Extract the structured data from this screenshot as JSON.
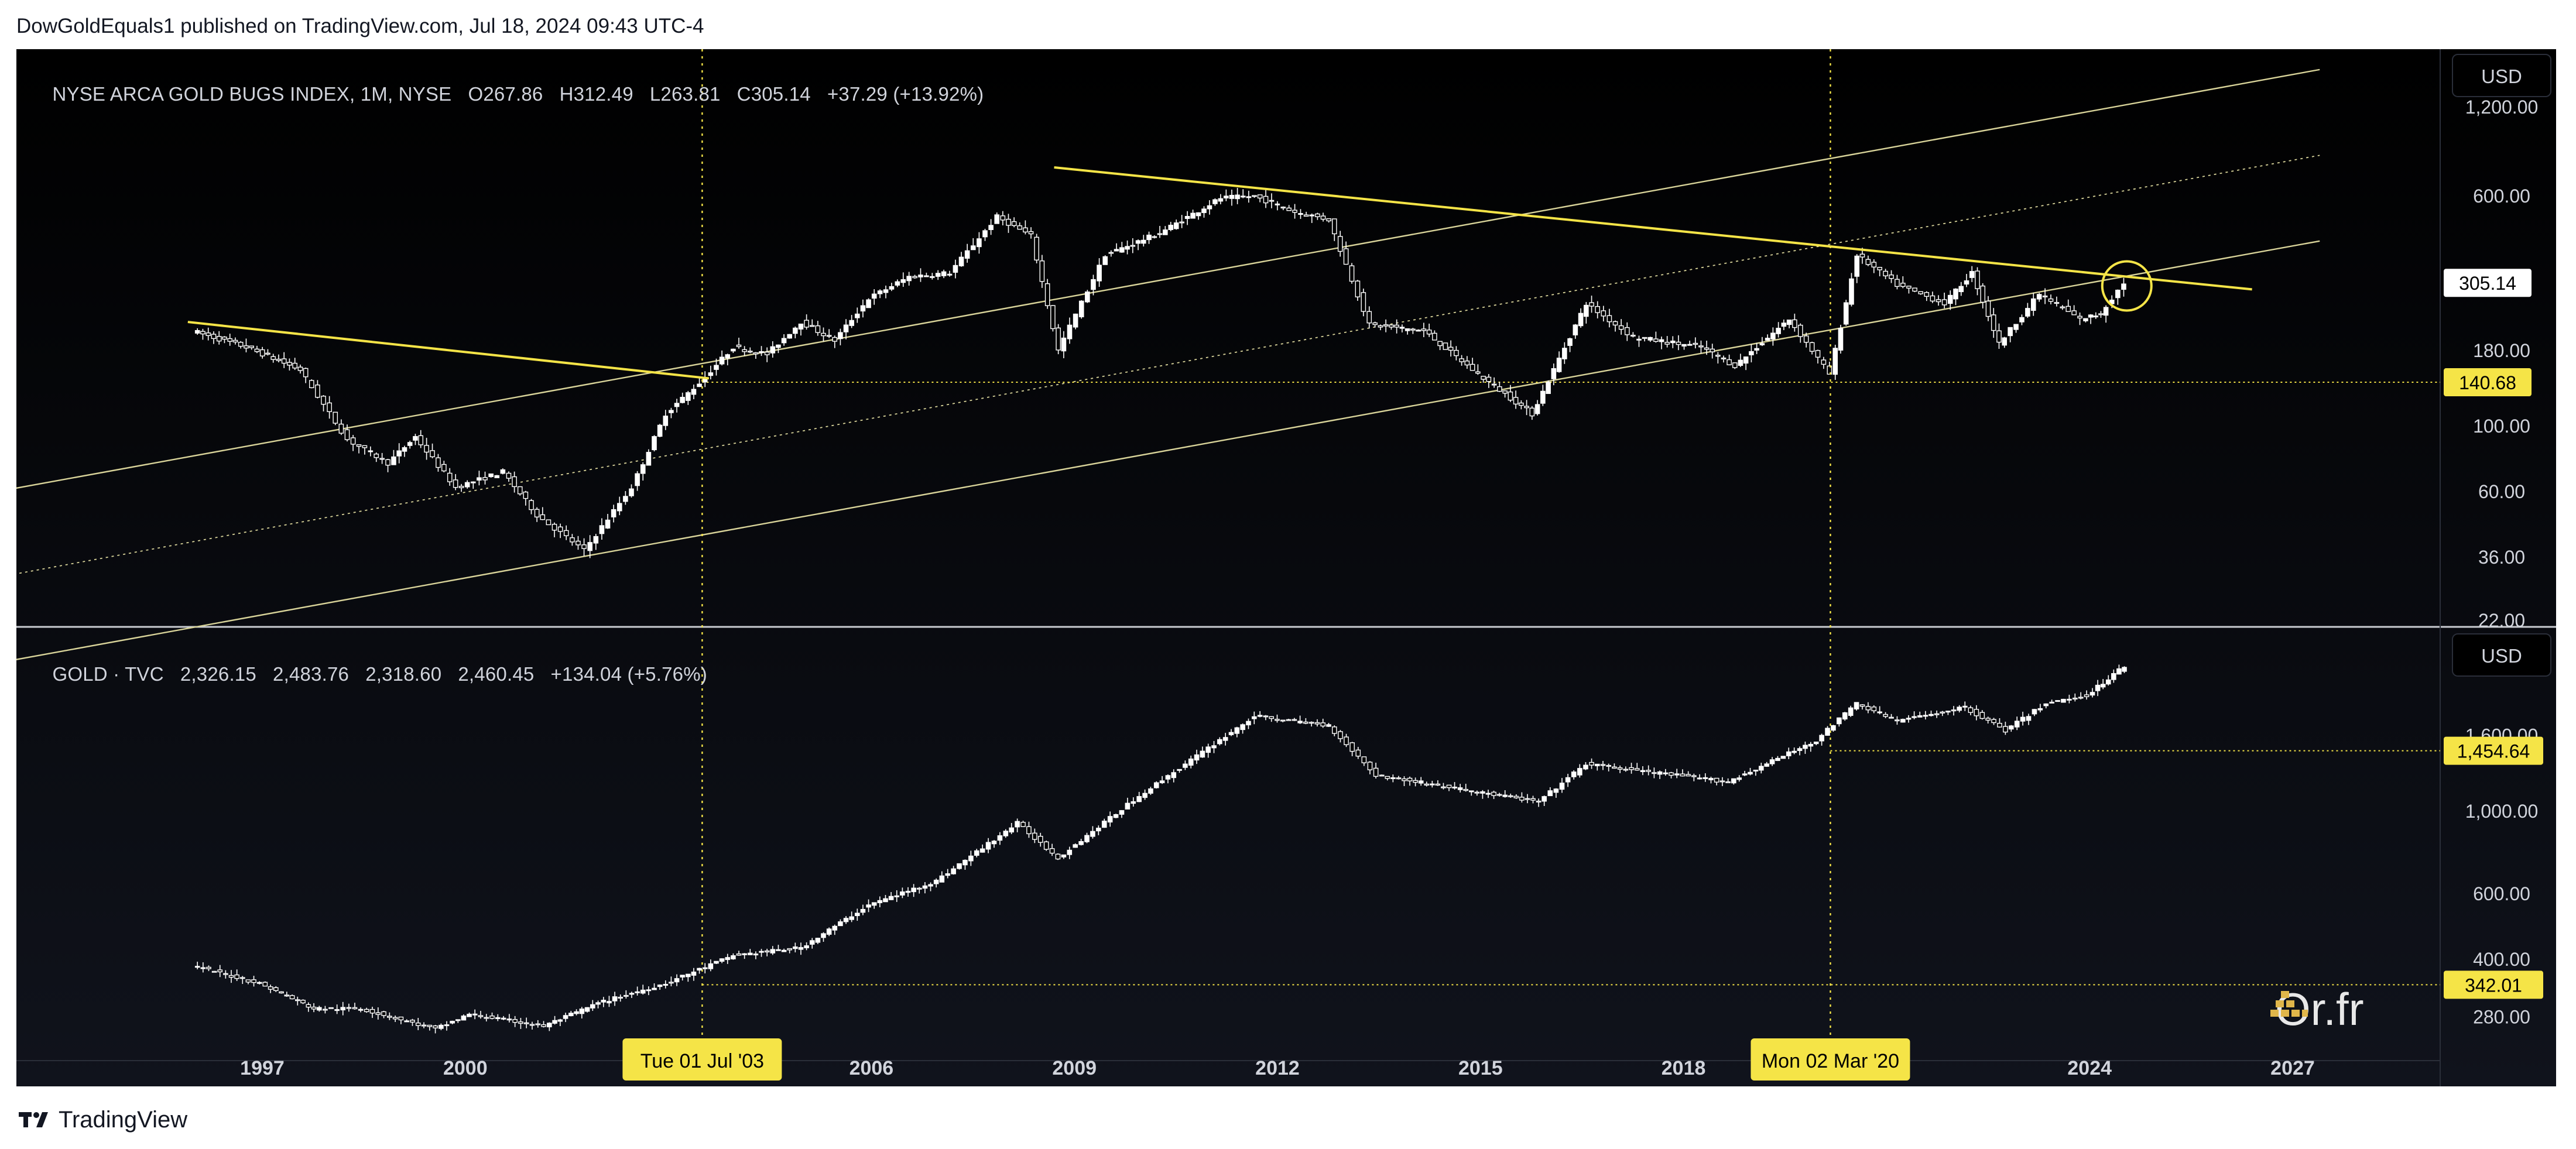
{
  "header": {
    "published_by": "DowGoldEquals1 published on TradingView.com, Jul 18, 2024 09:43 UTC-4"
  },
  "footer": {
    "brand": "TradingView"
  },
  "watermark": {
    "text": "Or.fr",
    "icon": "gold-bars-icon"
  },
  "colors": {
    "background": "#000000",
    "candle": "#ffffff",
    "trendline": "#f5e447",
    "channel": "#d9d49a",
    "label_bg": "#f5e447",
    "axis_text": "#d1d4dc"
  },
  "chart_data": [
    {
      "type": "candlestick",
      "title": "NYSE ARCA GOLD BUGS INDEX, 1M, NYSE",
      "legend": {
        "name": "NYSE ARCA GOLD BUGS INDEX, 1M, NYSE",
        "open": "O267.86",
        "high": "H312.49",
        "low": "L263.81",
        "close": "C305.14",
        "change": "+37.29 (+13.92%)"
      },
      "currency": "USD",
      "scale": "log",
      "ylim": [
        22,
        1800
      ],
      "y_ticks": [
        "1,200.00",
        "600.00",
        "180.00",
        "100.00",
        "60.00",
        "36.00",
        "22.00"
      ],
      "price_labels": [
        {
          "value": 305.14,
          "text": "305.14",
          "style": "last"
        },
        {
          "value": 140.68,
          "text": "140.68",
          "style": "highlight"
        }
      ],
      "key_points": [
        {
          "x": 1996.0,
          "y": 210
        },
        {
          "x": 1996.8,
          "y": 185
        },
        {
          "x": 1997.6,
          "y": 155
        },
        {
          "x": 1998.3,
          "y": 90
        },
        {
          "x": 1998.9,
          "y": 75
        },
        {
          "x": 1999.3,
          "y": 92
        },
        {
          "x": 1999.9,
          "y": 62
        },
        {
          "x": 2000.6,
          "y": 70
        },
        {
          "x": 2001.1,
          "y": 50
        },
        {
          "x": 2001.8,
          "y": 38
        },
        {
          "x": 2002.5,
          "y": 62
        },
        {
          "x": 2003.0,
          "y": 110
        },
        {
          "x": 2003.5,
          "y": 140
        },
        {
          "x": 2004.0,
          "y": 185
        },
        {
          "x": 2004.5,
          "y": 175
        },
        {
          "x": 2005.0,
          "y": 225
        },
        {
          "x": 2005.5,
          "y": 195
        },
        {
          "x": 2006.0,
          "y": 270
        },
        {
          "x": 2006.6,
          "y": 320
        },
        {
          "x": 2007.2,
          "y": 330
        },
        {
          "x": 2007.9,
          "y": 510
        },
        {
          "x": 2008.4,
          "y": 440
        },
        {
          "x": 2008.8,
          "y": 180
        },
        {
          "x": 2009.5,
          "y": 380
        },
        {
          "x": 2010.3,
          "y": 450
        },
        {
          "x": 2011.2,
          "y": 590
        },
        {
          "x": 2011.7,
          "y": 600
        },
        {
          "x": 2012.3,
          "y": 530
        },
        {
          "x": 2012.8,
          "y": 500
        },
        {
          "x": 2013.4,
          "y": 220
        },
        {
          "x": 2014.2,
          "y": 210
        },
        {
          "x": 2015.0,
          "y": 150
        },
        {
          "x": 2015.8,
          "y": 110
        },
        {
          "x": 2016.6,
          "y": 260
        },
        {
          "x": 2017.3,
          "y": 200
        },
        {
          "x": 2018.3,
          "y": 185
        },
        {
          "x": 2018.8,
          "y": 160
        },
        {
          "x": 2019.6,
          "y": 230
        },
        {
          "x": 2020.2,
          "y": 150
        },
        {
          "x": 2020.6,
          "y": 380
        },
        {
          "x": 2021.2,
          "y": 300
        },
        {
          "x": 2021.9,
          "y": 260
        },
        {
          "x": 2022.3,
          "y": 330
        },
        {
          "x": 2022.7,
          "y": 190
        },
        {
          "x": 2023.3,
          "y": 280
        },
        {
          "x": 2023.9,
          "y": 230
        },
        {
          "x": 2024.2,
          "y": 240
        },
        {
          "x": 2024.55,
          "y": 305
        }
      ]
    },
    {
      "type": "candlestick",
      "title": "GOLD · TVC",
      "legend": {
        "name": "GOLD · TVC",
        "open": "2,326.15",
        "high": "2,483.76",
        "low": "2,318.60",
        "close": "2,460.45",
        "change": "+134.04 (+5.76%)"
      },
      "currency": "USD",
      "scale": "log",
      "ylim": [
        230,
        2900
      ],
      "y_ticks": [
        "1,600.00",
        "1,000.00",
        "600.00",
        "400.00",
        "280.00"
      ],
      "price_labels": [
        {
          "value": 1454.64,
          "text": "1,454.64",
          "style": "highlight"
        },
        {
          "value": 342.01,
          "text": "342.01",
          "style": "highlight"
        }
      ],
      "key_points": [
        {
          "x": 1996.0,
          "y": 385
        },
        {
          "x": 1997.0,
          "y": 345
        },
        {
          "x": 1997.8,
          "y": 295
        },
        {
          "x": 1998.5,
          "y": 295
        },
        {
          "x": 1999.6,
          "y": 260
        },
        {
          "x": 2000.1,
          "y": 285
        },
        {
          "x": 2001.2,
          "y": 265
        },
        {
          "x": 2002.0,
          "y": 305
        },
        {
          "x": 2003.0,
          "y": 345
        },
        {
          "x": 2004.0,
          "y": 410
        },
        {
          "x": 2005.0,
          "y": 430
        },
        {
          "x": 2006.0,
          "y": 560
        },
        {
          "x": 2007.0,
          "y": 650
        },
        {
          "x": 2008.2,
          "y": 930
        },
        {
          "x": 2008.8,
          "y": 750
        },
        {
          "x": 2010.0,
          "y": 1100
        },
        {
          "x": 2011.7,
          "y": 1800
        },
        {
          "x": 2012.8,
          "y": 1700
        },
        {
          "x": 2013.5,
          "y": 1250
        },
        {
          "x": 2015.9,
          "y": 1060
        },
        {
          "x": 2016.6,
          "y": 1340
        },
        {
          "x": 2018.7,
          "y": 1200
        },
        {
          "x": 2020.0,
          "y": 1550
        },
        {
          "x": 2020.6,
          "y": 1950
        },
        {
          "x": 2021.2,
          "y": 1750
        },
        {
          "x": 2022.2,
          "y": 1900
        },
        {
          "x": 2022.8,
          "y": 1650
        },
        {
          "x": 2023.4,
          "y": 1950
        },
        {
          "x": 2024.0,
          "y": 2050
        },
        {
          "x": 2024.55,
          "y": 2460
        }
      ]
    }
  ],
  "x_axis": {
    "ticks": [
      {
        "label": "1997",
        "x": 1997
      },
      {
        "label": "2000",
        "x": 2000
      },
      {
        "label": "2006",
        "x": 2006
      },
      {
        "label": "2009",
        "x": 2009
      },
      {
        "label": "2012",
        "x": 2012
      },
      {
        "label": "2015",
        "x": 2015
      },
      {
        "label": "2018",
        "x": 2018
      },
      {
        "label": "2024",
        "x": 2024
      },
      {
        "label": "2027",
        "x": 2027
      }
    ],
    "markers": [
      {
        "label": "Tue 01 Jul '03",
        "x": 2003.5
      },
      {
        "label": "Mon 02 Mar '20",
        "x": 2020.17
      }
    ]
  },
  "annotations": {
    "channel": {
      "anchor_x": 2001.83,
      "anchor_y": 36.5,
      "slope_per_year": 0.0416,
      "mid_ratio": 0.29,
      "top_ratio": 0.58
    },
    "trendlines": [
      {
        "x1": 1995.9,
        "y1": 225,
        "x2": 2003.6,
        "y2": 145
      },
      {
        "x1": 2008.7,
        "y1": 750,
        "x2": 2026.4,
        "y2": 290
      }
    ],
    "circle": {
      "x": 2024.55,
      "y": 298
    },
    "top_horizontal": {
      "from_x": 2003.5,
      "value": 140.68
    },
    "bottom_horizontals": [
      {
        "from_x": 2020.17,
        "value": 1454.64
      },
      {
        "from_x": 2003.5,
        "value": 342.01
      }
    ]
  }
}
